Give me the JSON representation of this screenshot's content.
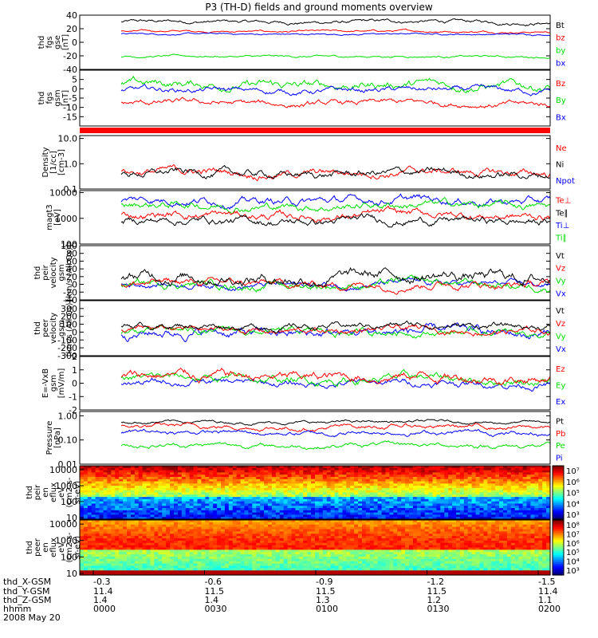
{
  "title": "P3 (TH-D) fields and ground moments overview",
  "colors": {
    "black": "#000000",
    "red": "#ff0000",
    "green": "#00dd00",
    "blue": "#0000ff"
  },
  "chart_data": [
    {
      "type": "line",
      "id": "fgs",
      "ylabel": [
        "thd",
        "fgs",
        "gse",
        "[nT]"
      ],
      "ylim": [
        -40,
        40
      ],
      "yticks": [
        40,
        20,
        0,
        -20,
        -40
      ],
      "legend": [
        {
          "label": "Bt",
          "color": "black"
        },
        {
          "label": "bz",
          "color": "red"
        },
        {
          "label": "by",
          "color": "green"
        },
        {
          "label": "bx",
          "color": "blue"
        }
      ],
      "series": [
        {
          "color": "black",
          "level": 30,
          "noise": 2.5
        },
        {
          "color": "red",
          "level": 16,
          "noise": 1.5
        },
        {
          "color": "blue",
          "level": 12,
          "noise": 1.2
        },
        {
          "color": "green",
          "level": -21,
          "noise": 1.5
        }
      ]
    },
    {
      "type": "line",
      "id": "fgs-gsm",
      "ylabel": [
        "thd",
        "fgs",
        "gsm",
        "[nT]"
      ],
      "ylim": [
        -20,
        10
      ],
      "yticks": [
        5,
        0,
        -5,
        -10,
        -15
      ],
      "legend": [
        {
          "label": "Bz",
          "color": "red"
        },
        {
          "label": "By",
          "color": "green"
        },
        {
          "label": "Bx",
          "color": "blue"
        }
      ],
      "series": [
        {
          "color": "green",
          "level": 2,
          "noise": 2.2
        },
        {
          "color": "blue",
          "level": -1,
          "noise": 1.5
        },
        {
          "color": "red",
          "level": -8,
          "noise": 1.5
        }
      ]
    },
    {
      "type": "line",
      "id": "density",
      "log": true,
      "ylabel": [
        "Density",
        "[1/cc]",
        "[cm-3]"
      ],
      "ylim": [
        0.1,
        13
      ],
      "yticks": [
        10.0,
        1.0,
        0.1
      ],
      "ytick_labels": [
        "10.0",
        "1.0",
        "0.1"
      ],
      "legend": [
        {
          "label": "Ne",
          "color": "red"
        },
        {
          "label": "Ni",
          "color": "black"
        },
        {
          "label": "Npot",
          "color": "blue"
        }
      ],
      "series": [
        {
          "color": "red",
          "level": 0.45,
          "noise": 0.05
        },
        {
          "color": "black",
          "level": 0.4,
          "noise": 0.05
        }
      ]
    },
    {
      "type": "line",
      "id": "temp",
      "log": true,
      "ylabel": [
        "magt3",
        "[eV]"
      ],
      "ylim": [
        100,
        12000
      ],
      "yticks": [
        10000,
        1000,
        100
      ],
      "ytick_labels": [
        "10000",
        "1000",
        "100"
      ],
      "legend": [
        {
          "label": "Te⊥",
          "color": "red"
        },
        {
          "label": "Te∥",
          "color": "black"
        },
        {
          "label": "Ti⊥",
          "color": "blue"
        },
        {
          "label": "Ti∥",
          "color": "green"
        }
      ],
      "series": [
        {
          "color": "blue",
          "level": 5000,
          "noise": 0.05
        },
        {
          "color": "green",
          "level": 3200,
          "noise": 0.05
        },
        {
          "color": "red",
          "level": 1300,
          "noise": 0.05
        },
        {
          "color": "black",
          "level": 800,
          "noise": 0.05
        }
      ]
    },
    {
      "type": "line",
      "id": "peir-vel",
      "ylabel": [
        "thd",
        "peir",
        "velocity",
        "gsm",
        "[km/s (All Qs)]"
      ],
      "ylim": [
        -40,
        100
      ],
      "yticks": [
        100,
        80,
        60,
        40,
        20,
        0,
        -20,
        -40
      ],
      "legend": [
        {
          "label": "Vt",
          "color": "black"
        },
        {
          "label": "Vz",
          "color": "red"
        },
        {
          "label": "Vy",
          "color": "green"
        },
        {
          "label": "Vx",
          "color": "blue"
        }
      ],
      "series": [
        {
          "color": "blue",
          "level": 0,
          "noise": 8
        },
        {
          "color": "green",
          "level": 0,
          "noise": 10
        },
        {
          "color": "red",
          "level": 2,
          "noise": 10
        },
        {
          "color": "black",
          "level": 20,
          "noise": 14
        }
      ]
    },
    {
      "type": "line",
      "id": "peer-vel",
      "ylabel": [
        "thd",
        "peer",
        "velocity",
        "gsm",
        "[km/s (All Qs)]"
      ],
      "ylim": [
        -300,
        400
      ],
      "yticks": [
        300,
        200,
        100,
        0,
        -100,
        -200,
        -300
      ],
      "legend": [
        {
          "label": "Vt",
          "color": "black"
        },
        {
          "label": "Vz",
          "color": "red"
        },
        {
          "label": "Vy",
          "color": "green"
        },
        {
          "label": "Vx",
          "color": "blue"
        }
      ],
      "series": [
        {
          "color": "blue",
          "level": -10,
          "noise": 60
        },
        {
          "color": "green",
          "level": 0,
          "noise": 45
        },
        {
          "color": "red",
          "level": 20,
          "noise": 40
        },
        {
          "color": "black",
          "level": 80,
          "noise": 40
        }
      ]
    },
    {
      "type": "line",
      "id": "efield",
      "ylabel": [
        "E=-VxB",
        "gsm",
        "[mV/m]"
      ],
      "ylim": [
        -2,
        2
      ],
      "yticks": [
        2,
        1,
        0,
        -1,
        -2
      ],
      "legend": [
        {
          "label": "Ez",
          "color": "red"
        },
        {
          "label": "Ey",
          "color": "green"
        },
        {
          "label": "Ex",
          "color": "blue"
        }
      ],
      "series": [
        {
          "color": "blue",
          "level": 0,
          "noise": 0.25
        },
        {
          "color": "green",
          "level": 0.3,
          "noise": 0.3
        },
        {
          "color": "red",
          "level": 0.5,
          "noise": 0.35
        }
      ]
    },
    {
      "type": "line",
      "id": "pressure",
      "log": true,
      "ylabel": [
        "Pressure",
        "[nPa]"
      ],
      "ylim": [
        0.01,
        1.5
      ],
      "yticks": [
        1.0,
        0.1,
        0.01
      ],
      "ytick_labels": [
        "1.00",
        "0.10",
        "0.01"
      ],
      "legend": [
        {
          "label": "Pt",
          "color": "black"
        },
        {
          "label": "Pb",
          "color": "red"
        },
        {
          "label": "Pe",
          "color": "green"
        },
        {
          "label": "Pi",
          "color": "blue"
        }
      ],
      "series": [
        {
          "color": "black",
          "level": 0.55,
          "noise": 0.02
        },
        {
          "color": "red",
          "level": 0.35,
          "noise": 0.03
        },
        {
          "color": "blue",
          "level": 0.2,
          "noise": 0.03
        },
        {
          "color": "green",
          "level": 0.06,
          "noise": 0.03
        }
      ]
    },
    {
      "type": "heatmap",
      "id": "peir-spec",
      "ylabel": [
        "thd",
        "peir",
        "en",
        "eflux",
        "eV",
        "(cm2-s-",
        "sr-eV)"
      ],
      "yticks": [
        10000,
        1000,
        100,
        10
      ],
      "ytick_labels": [
        "10000",
        "1000",
        "100",
        "10"
      ],
      "colorbar": {
        "labels": [
          "10⁷",
          "10⁶",
          "10⁵",
          "10⁴",
          "10³"
        ]
      }
    },
    {
      "type": "heatmap",
      "id": "peer-spec",
      "ylabel": [
        "thd",
        "peer",
        "en",
        "eflux",
        "eV",
        "(cm2-s-",
        "sr-eV)"
      ],
      "yticks": [
        10000,
        1000,
        100,
        10
      ],
      "ytick_labels": [
        "10000",
        "1000",
        "100",
        "10"
      ],
      "colorbar": {
        "labels": [
          "10⁸",
          "10⁷",
          "10⁶",
          "10⁵",
          "10⁴",
          "10³"
        ]
      }
    }
  ],
  "x_axis": {
    "row_labels": [
      "thd_X-GSM",
      "thd_Y-GSM",
      "thd_Z-GSM",
      "hhmm",
      "2008 May 20"
    ],
    "ticks": [
      {
        "x": "-0.3",
        "y": "11.4",
        "z": "1.4",
        "t": "0000"
      },
      {
        "x": "-0.6",
        "y": "11.5",
        "z": "1.4",
        "t": "0030"
      },
      {
        "x": "-0.9",
        "y": "11.5",
        "z": "1.3",
        "t": "0100"
      },
      {
        "x": "-1.2",
        "y": "11.5",
        "z": "1.2",
        "t": "0130"
      },
      {
        "x": "-1.5",
        "y": "11.4",
        "z": "1.1",
        "t": "0200"
      }
    ]
  }
}
